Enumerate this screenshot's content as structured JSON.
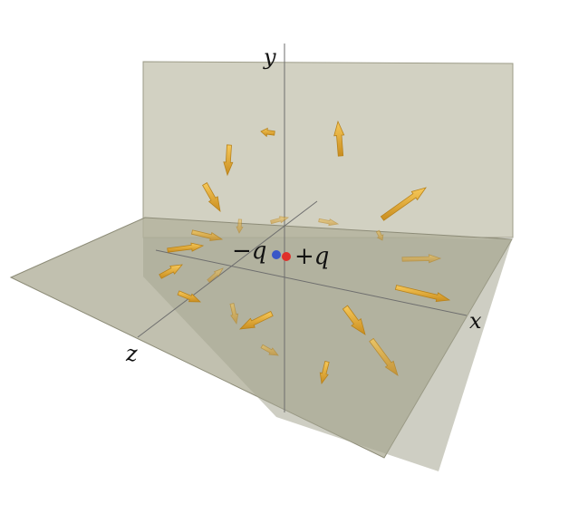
{
  "axes": {
    "x_label": "x",
    "y_label": "y",
    "z_label": "z"
  },
  "charges": [
    {
      "label": "−q",
      "color": "#3a57c8"
    },
    {
      "label": "+q",
      "color": "#e0302a"
    }
  ],
  "colors": {
    "plane_fill": "#b9b8a3",
    "plane_edge": "#8d8c78",
    "axis_line": "#6e6e6e",
    "arrow": "#e6ae2c",
    "arrow_dark": "#b8821a"
  }
}
